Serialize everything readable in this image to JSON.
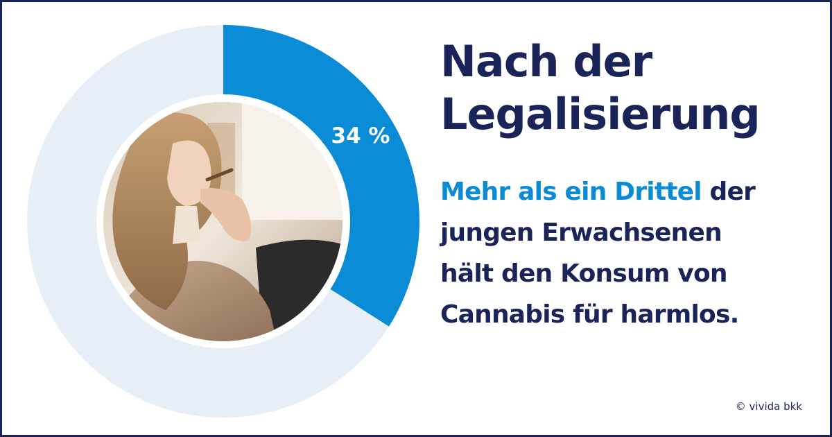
{
  "title": {
    "line1": "Nach der",
    "line2": "Legalisierung"
  },
  "body": {
    "highlight": "Mehr als ein Drittel",
    "line1_rest": " der",
    "line2": "jungen Erwachsenen",
    "line3": "hält den Konsum von",
    "line4": "Cannabis für harmlos."
  },
  "copyright": "© vivida bkk",
  "colors": {
    "accent": "#0a8bd6",
    "track": "#e8eef5",
    "navy": "#1b2458"
  },
  "icons": {
    "photo": "woman-smoking-photo"
  },
  "chart_data": {
    "type": "pie",
    "donut": true,
    "slices": [
      {
        "label": "34 %",
        "value": 34,
        "color": "#0a8bd6"
      },
      {
        "label": "",
        "value": 66,
        "color": "#e8eef5"
      }
    ]
  }
}
